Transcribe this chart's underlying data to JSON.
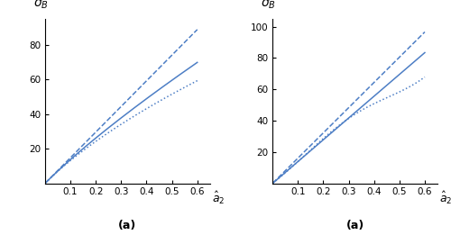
{
  "line_color": "#4d7ec5",
  "background": "#ffffff",
  "left": {
    "ylabel": "$\\sigma_B$",
    "xlim": [
      0.0,
      0.65
    ],
    "ylim": [
      0,
      95
    ],
    "yticks": [
      20,
      40,
      60,
      80
    ],
    "xticks": [
      0.1,
      0.2,
      0.3,
      0.4,
      0.5,
      0.6
    ],
    "label": "(a)",
    "dashed_coeffs": [
      155.0,
      0.0,
      0.0
    ],
    "solid_coeffs": [
      115.0,
      0.25,
      -3.5
    ],
    "dotted_coeffs": [
      108.0,
      0.2,
      -5.0
    ]
  },
  "right": {
    "ylabel": "$\\sigma_B$",
    "xlim": [
      0.0,
      0.65
    ],
    "ylim": [
      0,
      105
    ],
    "yticks": [
      20,
      40,
      60,
      80,
      100
    ],
    "xticks": [
      0.1,
      0.2,
      0.3,
      0.4,
      0.5,
      0.6
    ],
    "label": "(a)",
    "dashed_coeffs": [
      163.0,
      0.0,
      0.0
    ],
    "solid_coeffs": [
      140.0,
      0.0,
      0.0
    ],
    "dotted_coeffs": [
      130.0,
      0.0,
      0.0
    ]
  }
}
